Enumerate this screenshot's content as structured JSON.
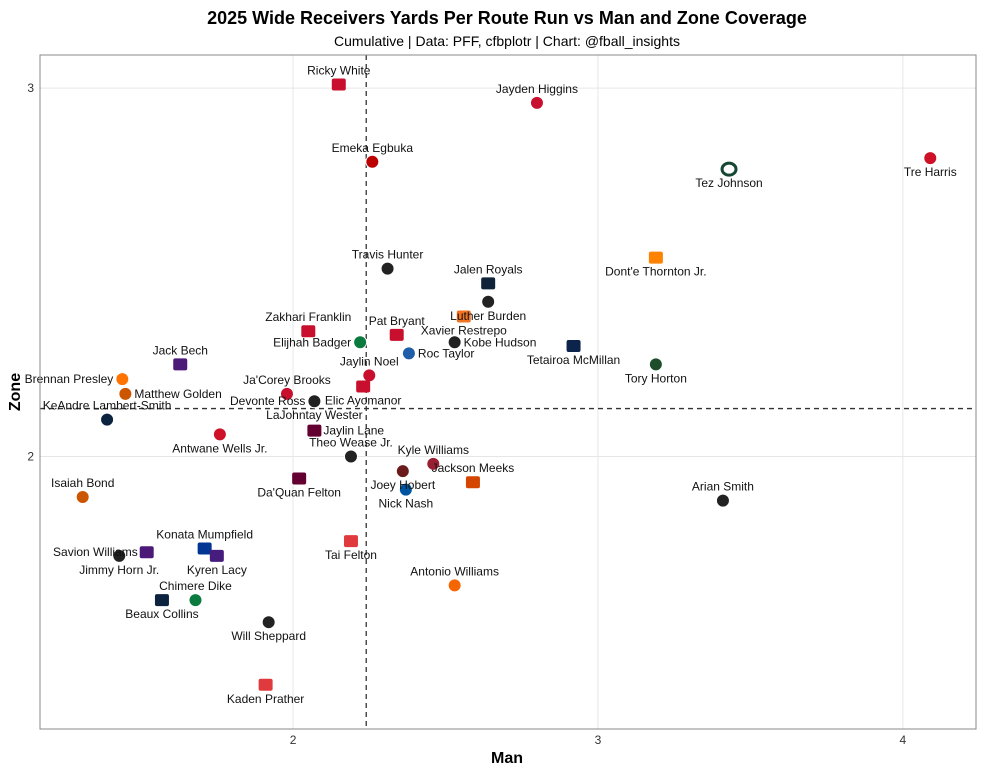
{
  "title": "2025 Wide Receivers Yards Per Route Run vs Man and Zone Coverage",
  "subtitle": "Cumulative | Data: PFF, cfbplotr | Chart: @fball_insights",
  "colors": {
    "grid": "#e6e6e6",
    "border": "#888888",
    "refline": "#333333"
  },
  "chart_data": {
    "type": "scatter",
    "xlabel": "Man",
    "ylabel": "Zone",
    "xlim": [
      1.17,
      4.24
    ],
    "ylim": [
      1.26,
      3.09
    ],
    "xticks": [
      2,
      3,
      4
    ],
    "yticks": [
      2,
      3
    ],
    "grid": true,
    "ref_x": 2.24,
    "ref_y": 2.13,
    "points": [
      {
        "name": "Ricky White",
        "x": 2.15,
        "y": 3.01,
        "lp": "above",
        "color": "#c8102e",
        "shape": "rect"
      },
      {
        "name": "Jayden Higgins",
        "x": 2.8,
        "y": 2.96,
        "lp": "above",
        "color": "#c8102e",
        "shape": "circle"
      },
      {
        "name": "Emeka Egbuka",
        "x": 2.26,
        "y": 2.8,
        "lp": "above",
        "color": "#bb0000",
        "shape": "circle"
      },
      {
        "name": "Tre Harris",
        "x": 4.09,
        "y": 2.81,
        "lp": "below",
        "color": "#ce1126",
        "shape": "circle"
      },
      {
        "name": "Tez Johnson",
        "x": 3.43,
        "y": 2.78,
        "lp": "below",
        "color": "#154733",
        "shape": "ring"
      },
      {
        "name": "Travis Hunter",
        "x": 2.31,
        "y": 2.51,
        "lp": "above",
        "color": "#222222",
        "shape": "circle"
      },
      {
        "name": "Dont'e Thornton Jr.",
        "x": 3.19,
        "y": 2.54,
        "lp": "below",
        "color": "#ff8200",
        "shape": "rect"
      },
      {
        "name": "Jalen Royals",
        "x": 2.64,
        "y": 2.47,
        "lp": "above",
        "color": "#0f2439",
        "shape": "rect"
      },
      {
        "name": "Luther Burden",
        "x": 2.64,
        "y": 2.42,
        "lp": "below",
        "color": "#222222",
        "shape": "circle"
      },
      {
        "name": "Xavier Restrepo",
        "x": 2.56,
        "y": 2.38,
        "lp": "below",
        "color": "#f47321",
        "shape": "rect"
      },
      {
        "name": "Zakhari Franklin",
        "x": 2.05,
        "y": 2.34,
        "lp": "above",
        "color": "#c8102e",
        "shape": "rect"
      },
      {
        "name": "Pat Bryant",
        "x": 2.34,
        "y": 2.33,
        "lp": "above",
        "color": "#c8102e",
        "shape": "rect"
      },
      {
        "name": "Elijhah Badger",
        "x": 2.22,
        "y": 2.31,
        "lp": "left",
        "color": "#0b7a3e",
        "shape": "circle"
      },
      {
        "name": "Kobe Hudson",
        "x": 2.53,
        "y": 2.31,
        "lp": "right",
        "color": "#222222",
        "shape": "circle"
      },
      {
        "name": "Tetairoa McMillan",
        "x": 2.92,
        "y": 2.3,
        "lp": "below",
        "color": "#0c234b",
        "shape": "rect"
      },
      {
        "name": "Roc Taylor",
        "x": 2.38,
        "y": 2.28,
        "lp": "right",
        "color": "#1f5ea8",
        "shape": "circle"
      },
      {
        "name": "Tory Horton",
        "x": 3.19,
        "y": 2.25,
        "lp": "below",
        "color": "#1e4d2b",
        "shape": "circle"
      },
      {
        "name": "Jack Bech",
        "x": 1.63,
        "y": 2.25,
        "lp": "above",
        "color": "#4d1979",
        "shape": "rect"
      },
      {
        "name": "Jaylin Noel",
        "x": 2.25,
        "y": 2.22,
        "lp": "above",
        "color": "#c8102e",
        "shape": "circle"
      },
      {
        "name": "Ja'Corey Brooks",
        "x": 1.98,
        "y": 2.17,
        "lp": "above",
        "color": "#c8102e",
        "shape": "circle"
      },
      {
        "name": "Elic Ayomanor",
        "x": 2.23,
        "y": 2.19,
        "lp": "below",
        "color": "#c8102e",
        "shape": "rect"
      },
      {
        "name": "Brennan Presley",
        "x": 1.44,
        "y": 2.21,
        "lp": "left",
        "color": "#ff7300",
        "shape": "circle"
      },
      {
        "name": "Matthew Golden",
        "x": 1.45,
        "y": 2.17,
        "lp": "right",
        "color": "#cc5500",
        "shape": "circle"
      },
      {
        "name": "Devonte Ross",
        "x": 2.07,
        "y": 2.15,
        "lp": "left",
        "color": "#222222",
        "shape": "circle"
      },
      {
        "name": "LaJohntay Wester",
        "x": 2.07,
        "y": 2.15,
        "lp": "below",
        "color": "#222222",
        "shape": "circle"
      },
      {
        "name": "KeAndre Lambert-Smith",
        "x": 1.39,
        "y": 2.1,
        "lp": "above",
        "color": "#0c2340",
        "shape": "circle"
      },
      {
        "name": "Jaylin Lane",
        "x": 2.07,
        "y": 2.07,
        "lp": "right",
        "color": "#630031",
        "shape": "rect"
      },
      {
        "name": "Antwane Wells Jr.",
        "x": 1.76,
        "y": 2.06,
        "lp": "below",
        "color": "#ce1126",
        "shape": "circle"
      },
      {
        "name": "Theo Wease Jr.",
        "x": 2.19,
        "y": 2.0,
        "lp": "above",
        "color": "#222222",
        "shape": "circle"
      },
      {
        "name": "Kyle Williams",
        "x": 2.46,
        "y": 1.98,
        "lp": "above",
        "color": "#981e32",
        "shape": "circle"
      },
      {
        "name": "Joey Hobert",
        "x": 2.36,
        "y": 1.96,
        "lp": "below",
        "color": "#6b1b1b",
        "shape": "circle"
      },
      {
        "name": "Jackson Meeks",
        "x": 2.59,
        "y": 1.93,
        "lp": "above",
        "color": "#d44500",
        "shape": "rect"
      },
      {
        "name": "Da'Quan Felton",
        "x": 2.02,
        "y": 1.94,
        "lp": "below",
        "color": "#630031",
        "shape": "rect"
      },
      {
        "name": "Nick Nash",
        "x": 2.37,
        "y": 1.91,
        "lp": "below",
        "color": "#0055a2",
        "shape": "circle"
      },
      {
        "name": "Arian Smith",
        "x": 3.41,
        "y": 1.88,
        "lp": "above",
        "color": "#222222",
        "shape": "circle"
      },
      {
        "name": "Isaiah Bond",
        "x": 1.31,
        "y": 1.89,
        "lp": "above",
        "color": "#cc5500",
        "shape": "circle"
      },
      {
        "name": "Tai Felton",
        "x": 2.19,
        "y": 1.77,
        "lp": "below",
        "color": "#e03a3e",
        "shape": "rect"
      },
      {
        "name": "Konata Mumpfield",
        "x": 1.71,
        "y": 1.75,
        "lp": "above",
        "color": "#003594",
        "shape": "rect"
      },
      {
        "name": "Savion Williams",
        "x": 1.52,
        "y": 1.74,
        "lp": "left",
        "color": "#4d1979",
        "shape": "rect"
      },
      {
        "name": "Jimmy Horn Jr.",
        "x": 1.43,
        "y": 1.73,
        "lp": "below",
        "color": "#222222",
        "shape": "circle"
      },
      {
        "name": "Kyren Lacy",
        "x": 1.75,
        "y": 1.73,
        "lp": "below",
        "color": "#461d7c",
        "shape": "rect"
      },
      {
        "name": "Antonio Williams",
        "x": 2.53,
        "y": 1.65,
        "lp": "above",
        "color": "#f56600",
        "shape": "circle"
      },
      {
        "name": "Chimere Dike",
        "x": 1.68,
        "y": 1.61,
        "lp": "above",
        "color": "#0b7a3e",
        "shape": "circle"
      },
      {
        "name": "Beaux Collins",
        "x": 1.57,
        "y": 1.61,
        "lp": "below",
        "color": "#0c2340",
        "shape": "rect"
      },
      {
        "name": "Will Sheppard",
        "x": 1.92,
        "y": 1.55,
        "lp": "below",
        "color": "#222222",
        "shape": "circle"
      },
      {
        "name": "Kaden Prather",
        "x": 1.91,
        "y": 1.38,
        "lp": "below",
        "color": "#e03a3e",
        "shape": "rect"
      }
    ]
  }
}
